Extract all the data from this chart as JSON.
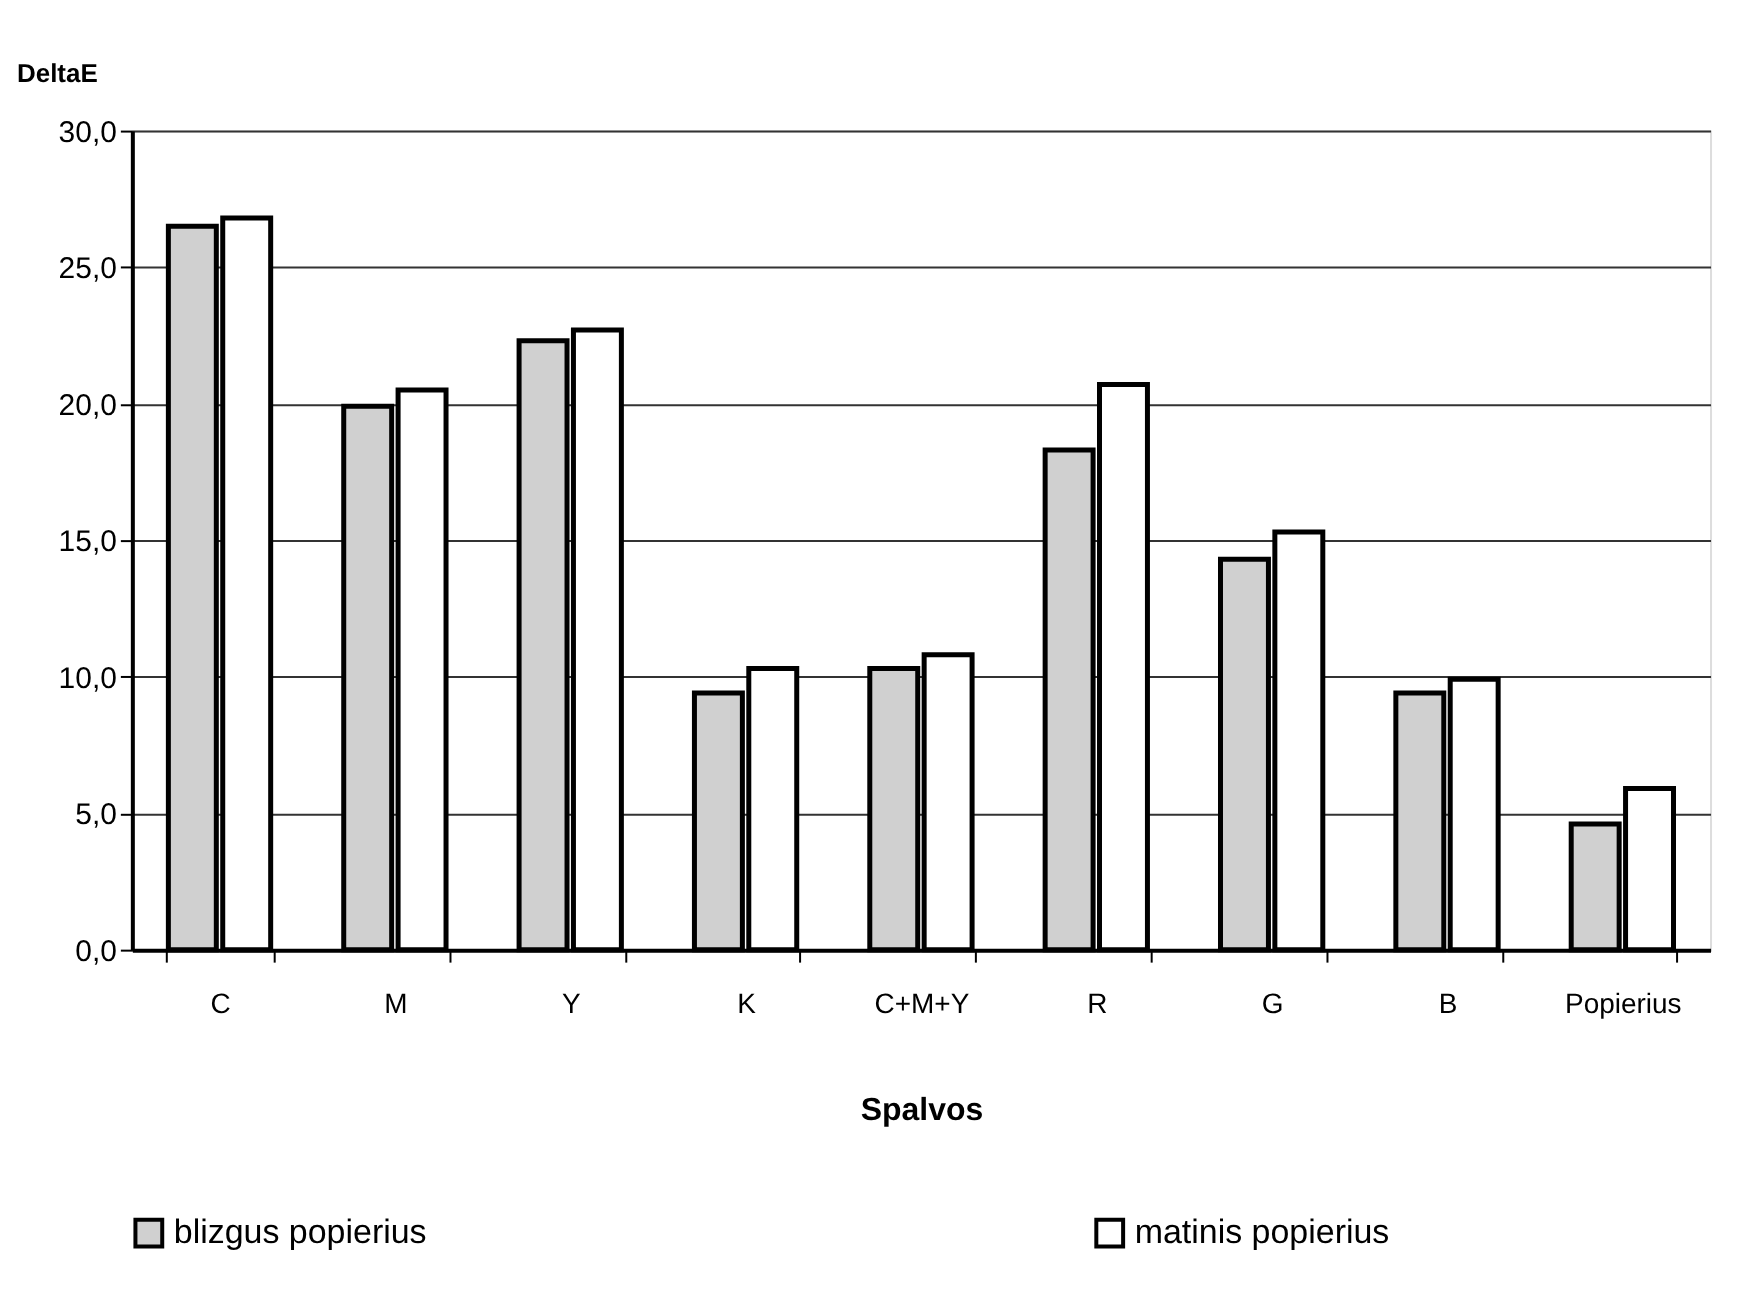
{
  "chart_data": {
    "type": "bar",
    "xlabel": "Spalvos",
    "ylabel": "DeltaE",
    "categories": [
      "C",
      "M",
      "Y",
      "K",
      "C+M+Y",
      "R",
      "G",
      "B",
      "Popierius"
    ],
    "series": [
      {
        "name": "blizgus popierius",
        "color": "#d0d0d0",
        "values": [
          26.5,
          19.9,
          22.3,
          9.4,
          10.3,
          18.3,
          14.3,
          9.4,
          4.6
        ]
      },
      {
        "name": "matinis popierius",
        "color": "#ffffff",
        "values": [
          26.8,
          20.5,
          22.7,
          10.3,
          10.8,
          20.7,
          15.3,
          9.9,
          5.9
        ]
      }
    ],
    "ylim": [
      0,
      30
    ],
    "yticks": [
      {
        "value": 0,
        "label": "0,0"
      },
      {
        "value": 5,
        "label": "5,0"
      },
      {
        "value": 10,
        "label": "10,0"
      },
      {
        "value": 15,
        "label": "15,0"
      },
      {
        "value": 20,
        "label": "20,0"
      },
      {
        "value": 25,
        "label": "25,0"
      },
      {
        "value": 30,
        "label": "30,0"
      }
    ],
    "grid": "y",
    "legend": "bottom"
  }
}
